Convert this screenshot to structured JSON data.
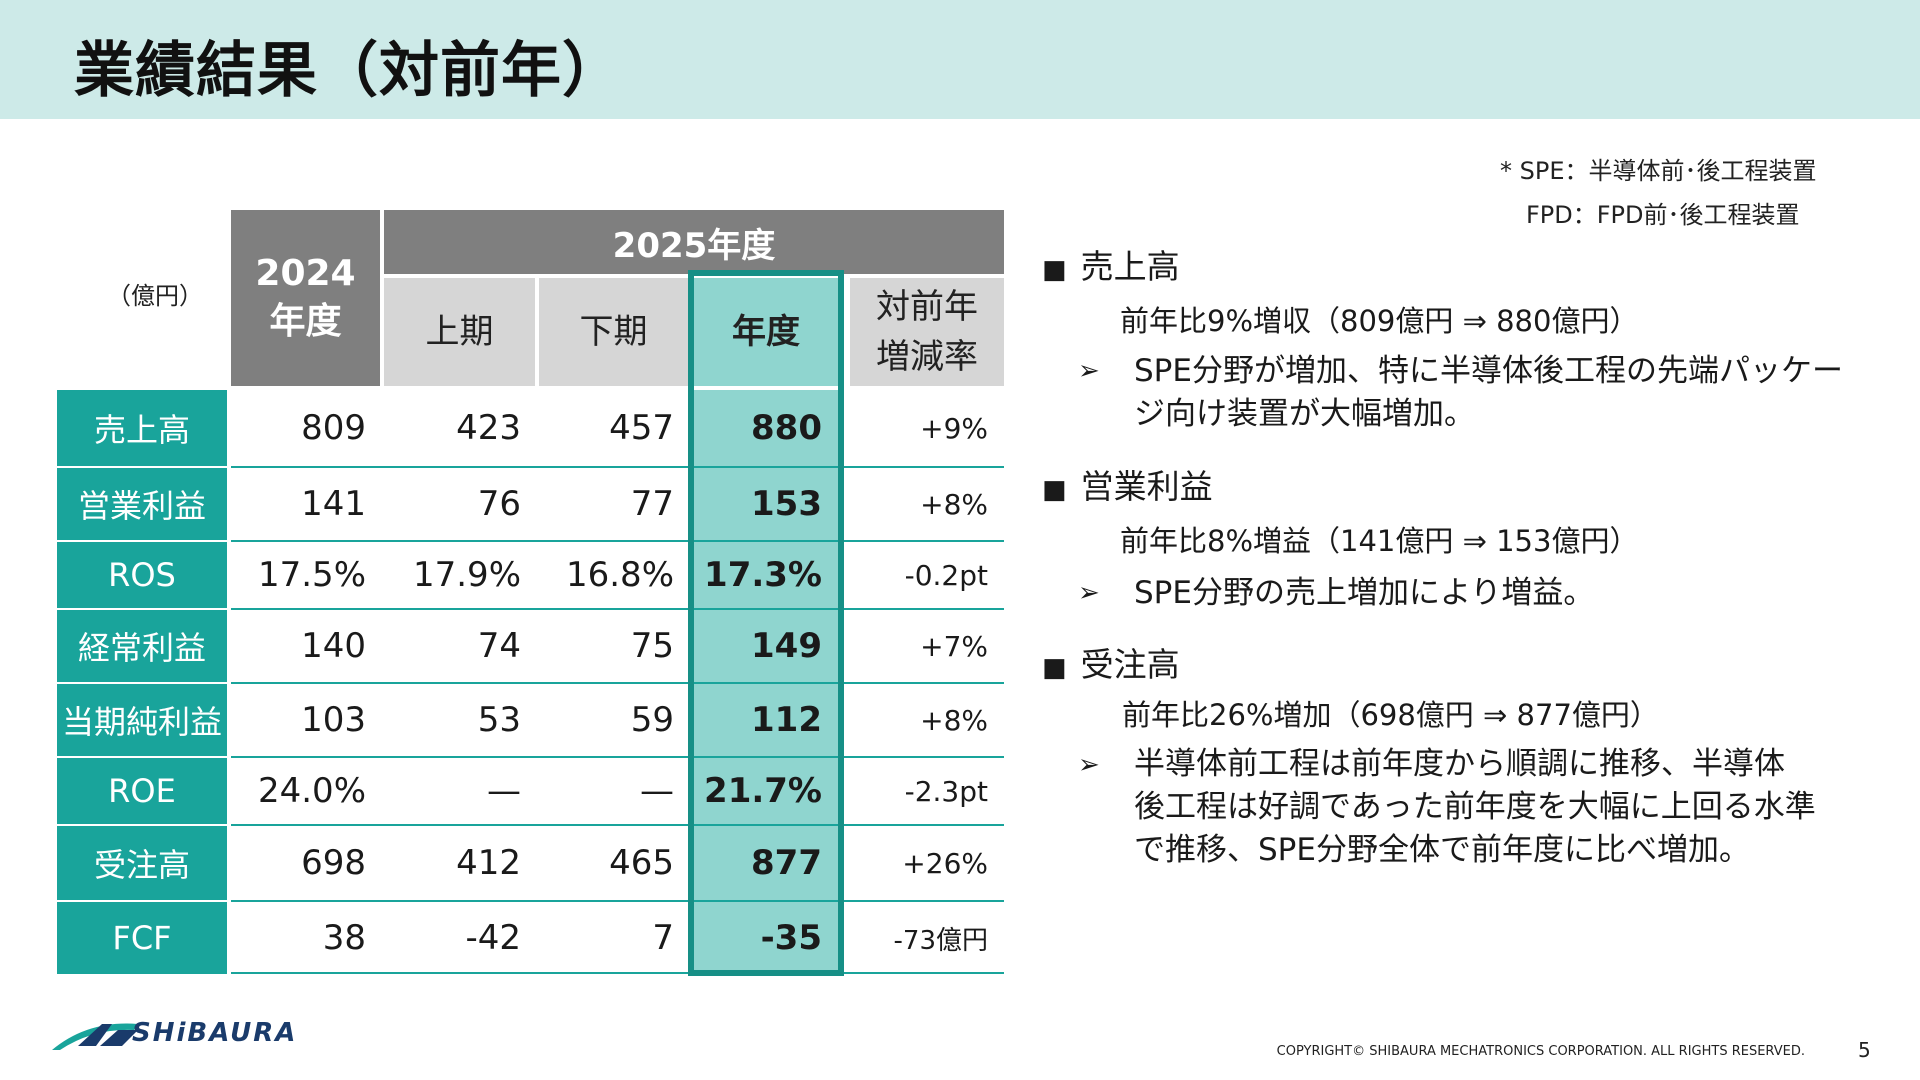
{
  "title": "業績結果（対前年）",
  "notes": [
    "* SPE：半導体前･後工程装置",
    "FPD：FPD前･後工程装置"
  ],
  "table": {
    "unit": "（億円）",
    "year_prev": [
      "2024",
      "年度"
    ],
    "year_cur": "2025年度",
    "sub_headers": {
      "h1": "上期",
      "h2": "下期",
      "fy": "年度",
      "chg": [
        "対前年",
        "増減率"
      ]
    },
    "rows": [
      {
        "label": "売上高",
        "prev": "809",
        "h1": "423",
        "h2": "457",
        "fy": "880",
        "chg": "+9%"
      },
      {
        "label": "営業利益",
        "prev": "141",
        "h1": "76",
        "h2": "77",
        "fy": "153",
        "chg": "+8%"
      },
      {
        "label": "ROS",
        "prev": "17.5%",
        "h1": "17.9%",
        "h2": "16.8%",
        "fy": "17.3%",
        "chg": "-0.2pt"
      },
      {
        "label": "経常利益",
        "prev": "140",
        "h1": "74",
        "h2": "75",
        "fy": "149",
        "chg": "+7%"
      },
      {
        "label": "当期純利益",
        "prev": "103",
        "h1": "53",
        "h2": "59",
        "fy": "112",
        "chg": "+8%"
      },
      {
        "label": "ROE",
        "prev": "24.0%",
        "h1": "—",
        "h2": "—",
        "fy": "21.7%",
        "chg": "-2.3pt"
      },
      {
        "label": "受注高",
        "prev": "698",
        "h1": "412",
        "h2": "465",
        "fy": "877",
        "chg": "+26%"
      },
      {
        "label": "FCF",
        "prev": "38",
        "h1": "-42",
        "h2": "7",
        "fy": "-35",
        "chg": "-73億円"
      }
    ]
  },
  "sections": [
    {
      "marker": "■",
      "heading": "売上高",
      "summary": "前年比9%増収（809億円 ⇒ 880億円）",
      "arrow": "➢",
      "bullet": [
        "SPE分野が増加、特に半導体後工程の先端パッケー",
        "ジ向け装置が大幅増加。"
      ]
    },
    {
      "marker": "■",
      "heading": "営業利益",
      "summary": "前年比8%増益（141億円 ⇒ 153億円）",
      "arrow": "➢",
      "bullet": [
        "SPE分野の売上増加により増益。"
      ]
    },
    {
      "marker": "■",
      "heading": "受注高",
      "summary": "前年比26%増加（698億円 ⇒ 877億円）",
      "arrow": "➢",
      "bullet": [
        "半導体前工程は前年度から順調に推移、半導体",
        "後工程は好調であった前年度を大幅に上回る水準",
        "で推移、SPE分野全体で前年度に比べ増加。"
      ]
    }
  ],
  "logo_text": "SHiBAURA",
  "copyright": "COPYRIGHT© SHIBAURA MECHATRONICS CORPORATION. ALL RIGHTS RESERVED.",
  "page": "5",
  "colors": {
    "accent": "#19a49b",
    "highlight": "#8fd5cf",
    "header_gray": "#7f7f7f",
    "band": "#cdeae8"
  }
}
